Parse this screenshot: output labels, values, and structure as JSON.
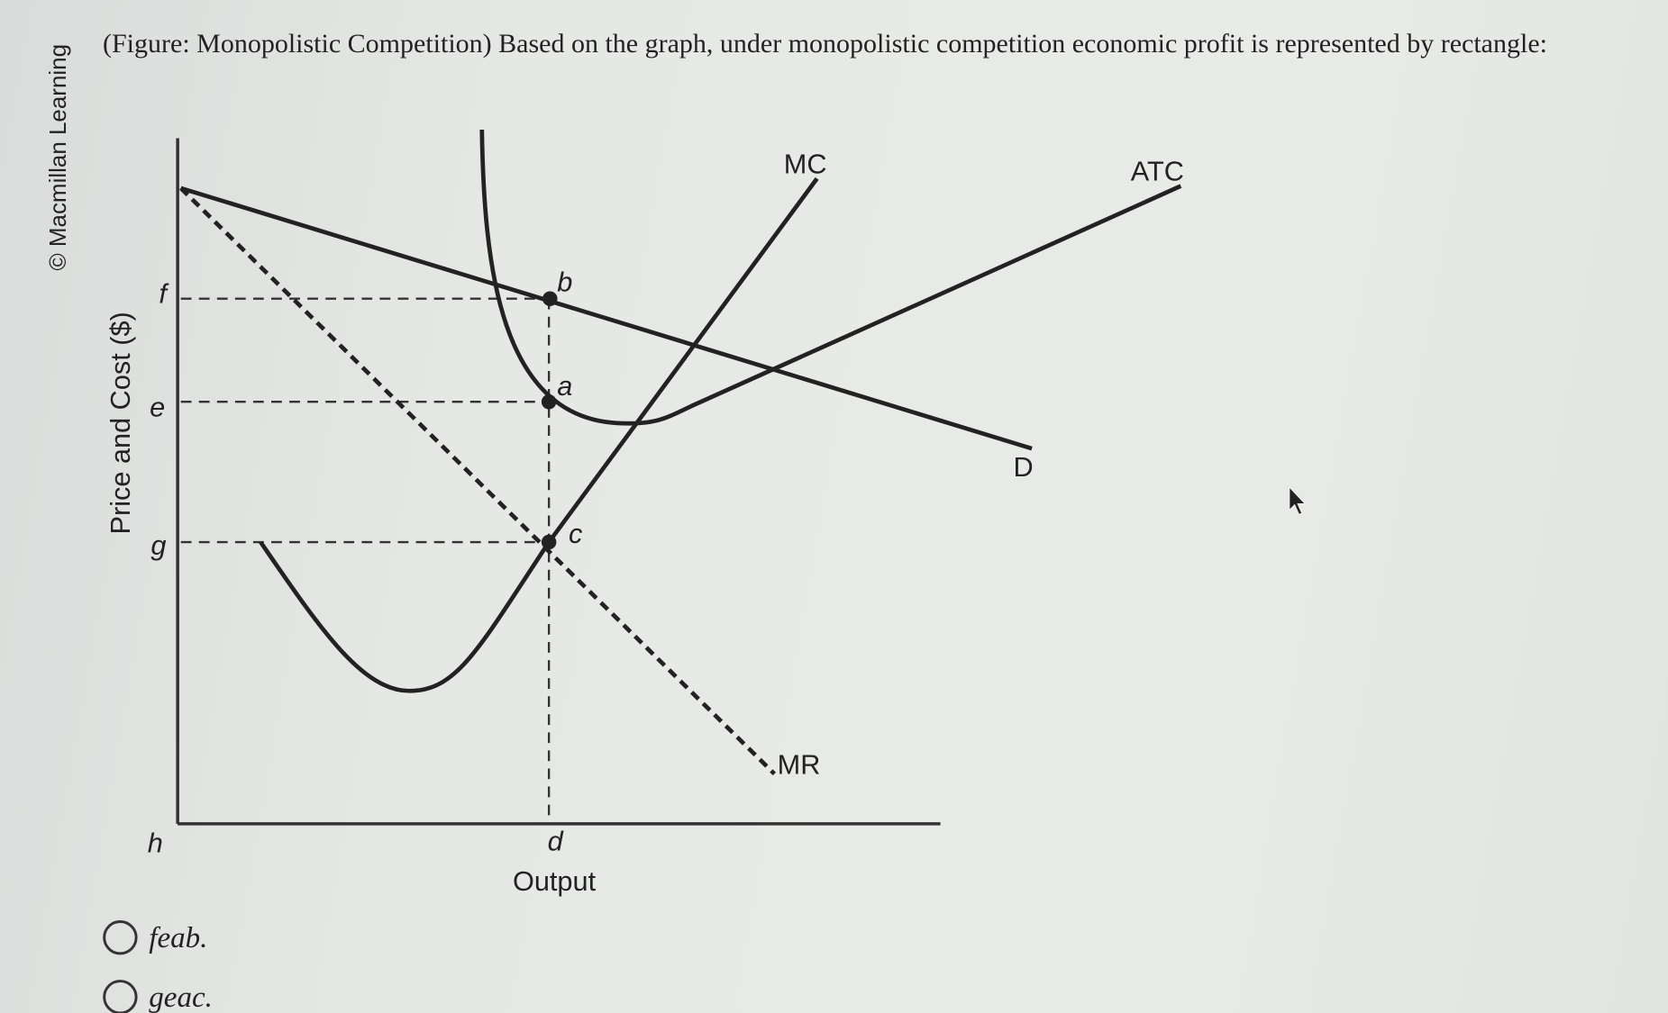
{
  "credit": "© Macmillan Learning",
  "question": "(Figure: Monopolistic Competition) Based on the graph, under monopolistic competition economic profit is represented by rectangle:",
  "figure": {
    "y_axis_label": "Price and Cost ($)",
    "x_axis_label": "Output",
    "axis_points": [
      "f",
      "e",
      "g",
      "h",
      "d"
    ],
    "points": [
      "b",
      "a",
      "c"
    ],
    "curves": [
      "MC",
      "ATC",
      "D",
      "MR"
    ]
  },
  "options": [
    "feab.",
    "geac."
  ]
}
